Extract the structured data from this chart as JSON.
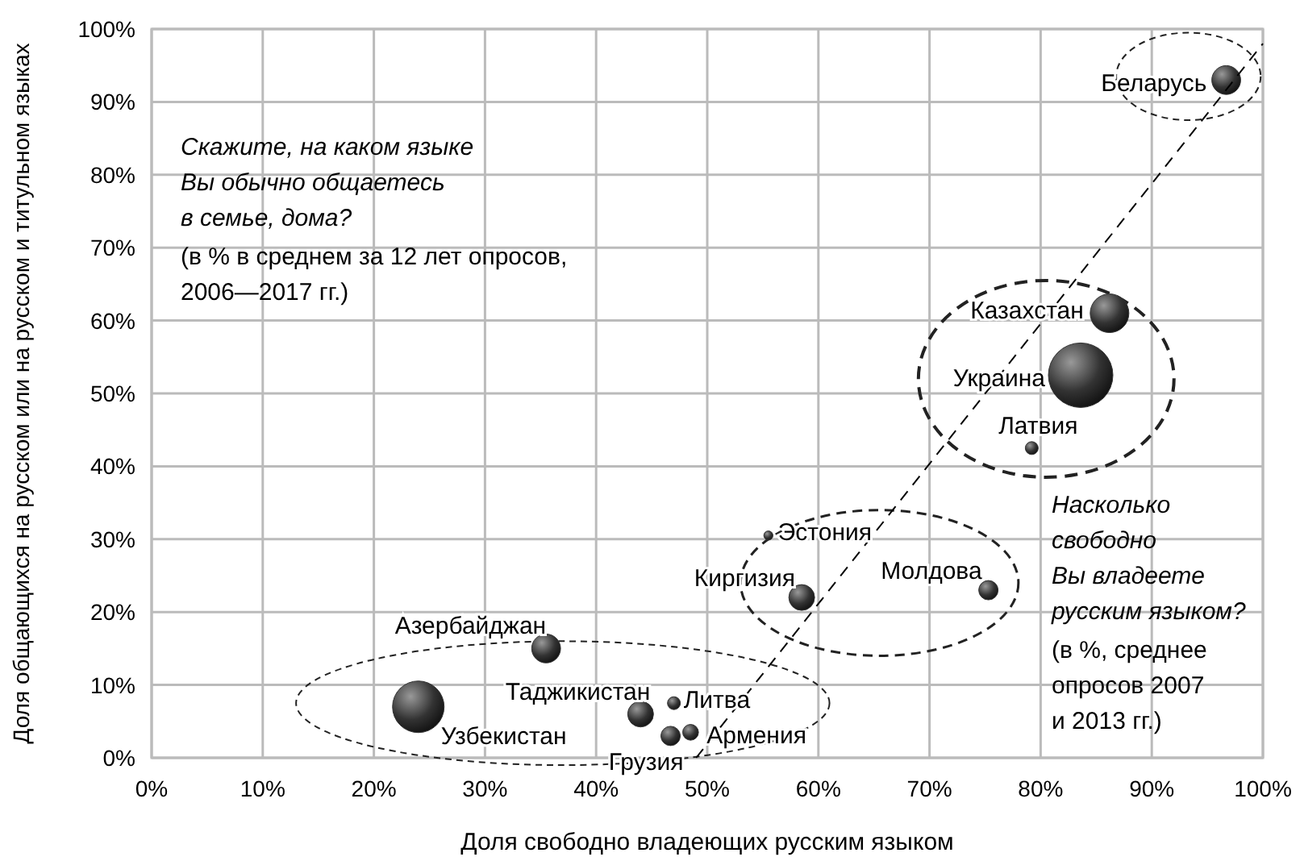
{
  "chart_data": {
    "type": "bubble",
    "xlabel": "Доля свободно владеющих русским языком",
    "ylabel": "Доля общающихся на русском или на русском и титульном языках",
    "x": [
      24,
      35.5,
      44,
      47,
      46.7,
      48.5,
      55.5,
      58.5,
      75.3,
      96.7,
      86.2,
      83.6,
      79.2
    ],
    "series": [
      {
        "color": "#333333",
        "values": [
          7,
          15,
          6,
          7.5,
          3,
          3.5,
          30.5,
          22,
          23,
          93,
          61,
          52.5,
          42.5
        ],
        "sizes": [
          0.64,
          0.2,
          0.16,
          0.04,
          0.09,
          0.06,
          0.02,
          0.16,
          0.09,
          0.2,
          0.36,
          1,
          0.04
        ]
      },
      {
        "type": "line",
        "color": "#000000",
        "line_style": "dashed",
        "marker": "none",
        "x": [
          49,
          100
        ],
        "values": [
          0,
          98
        ]
      }
    ],
    "xlim": [
      0,
      100
    ],
    "ylim": [
      0,
      100
    ],
    "xticks": [
      {
        "value": 0,
        "label": "0%"
      },
      {
        "value": 10,
        "label": "10%"
      },
      {
        "value": 20,
        "label": "20%"
      },
      {
        "value": 30,
        "label": "30%"
      },
      {
        "value": 40,
        "label": "40%"
      },
      {
        "value": 50,
        "label": "50%"
      },
      {
        "value": 60,
        "label": "60%"
      },
      {
        "value": 70,
        "label": "70%"
      },
      {
        "value": 80,
        "label": "80%"
      },
      {
        "value": 90,
        "label": "90%"
      },
      {
        "value": 100,
        "label": "100%"
      }
    ],
    "yticks": [
      {
        "value": 0,
        "label": "0%"
      },
      {
        "value": 10,
        "label": "10%"
      },
      {
        "value": 20,
        "label": "20%"
      },
      {
        "value": 30,
        "label": "30%"
      },
      {
        "value": 40,
        "label": "40%"
      },
      {
        "value": 50,
        "label": "50%"
      },
      {
        "value": 60,
        "label": "60%"
      },
      {
        "value": 70,
        "label": "70%"
      },
      {
        "value": 80,
        "label": "80%"
      },
      {
        "value": 90,
        "label": "90%"
      },
      {
        "value": 100,
        "label": "100%"
      }
    ],
    "grid": true,
    "annotations": [
      {
        "text": "Узбекистан",
        "x": 24,
        "y": 7
      },
      {
        "text": "Азербайджан",
        "x": 35.5,
        "y": 15
      },
      {
        "text": "Таджикистан",
        "x": 44,
        "y": 6
      },
      {
        "text": "Литва",
        "x": 47,
        "y": 7.5
      },
      {
        "text": "Грузия",
        "x": 46.7,
        "y": 3
      },
      {
        "text": "Армения",
        "x": 48.5,
        "y": 3.5
      },
      {
        "text": "Эстония",
        "x": 55.5,
        "y": 30.5
      },
      {
        "text": "Киргизия",
        "x": 58.5,
        "y": 22
      },
      {
        "text": "Молдова",
        "x": 75.3,
        "y": 23
      },
      {
        "text": "Беларусь",
        "x": 96.7,
        "y": 93
      },
      {
        "text": "Казахстан",
        "x": 86.2,
        "y": 61
      },
      {
        "text": "Украина",
        "x": 83.6,
        "y": 52.5
      },
      {
        "text": "Латвия",
        "x": 79.2,
        "y": 42.5
      },
      "Скажите, на каком языке\nВы обычно общаетесь\nв семье, дома?",
      "(в % в среднем за 12 лет опросов,\n2006—2017 гг.)",
      "Насколько\nсвободно\nВы владеете\nрусским языком?",
      "(в %, среднее\nопросов 2007\nи 2013 гг.)"
    ]
  }
}
